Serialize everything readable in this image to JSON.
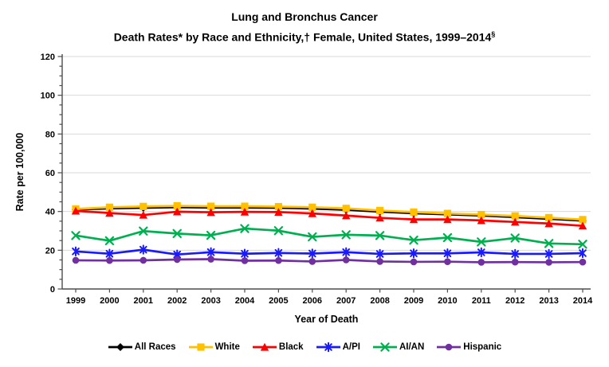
{
  "title": {
    "line1": "Lung and Bronchus Cancer",
    "line2_main": "Death Rates* by Race and Ethnicity,† Female, United States, 1999–2014",
    "line2_sup": "§"
  },
  "chart_data": {
    "type": "line",
    "title": "Lung and Bronchus Cancer Death Rates* by Race and Ethnicity,† Female, United States, 1999–2014§",
    "x": [
      1999,
      2000,
      2001,
      2002,
      2003,
      2004,
      2005,
      2006,
      2007,
      2008,
      2009,
      2010,
      2011,
      2012,
      2013,
      2014
    ],
    "xlabel": "Year of Death",
    "ylabel": "Rate per 100,000",
    "ylim": [
      0,
      120
    ],
    "yticks": [
      0,
      20,
      40,
      60,
      80,
      100,
      120
    ],
    "yminor_step": 5,
    "grid": "horizontal-major-gridlines",
    "legend_position": "bottom-center",
    "series": [
      {
        "name": "All Races",
        "color": "#000000",
        "marker": "diamond",
        "values": [
          41.0,
          41.6,
          41.9,
          42.2,
          42.0,
          42.0,
          41.9,
          41.5,
          40.9,
          39.9,
          39.1,
          38.5,
          37.9,
          37.1,
          36.2,
          35.3
        ]
      },
      {
        "name": "White",
        "color": "#FFC000",
        "marker": "square",
        "values": [
          41.3,
          42.2,
          42.6,
          42.9,
          42.7,
          42.7,
          42.5,
          42.2,
          41.6,
          40.5,
          39.7,
          39.0,
          38.4,
          37.7,
          36.8,
          35.8
        ]
      },
      {
        "name": "Black",
        "color": "#FF0000",
        "marker": "triangle",
        "values": [
          40.3,
          39.2,
          38.2,
          39.9,
          39.6,
          39.8,
          39.7,
          39.0,
          37.9,
          36.7,
          35.9,
          35.9,
          35.4,
          34.6,
          33.8,
          32.6
        ]
      },
      {
        "name": "A/PI",
        "color": "#1A1AFF",
        "marker": "asterisk",
        "values": [
          19.4,
          18.2,
          20.3,
          17.8,
          19.0,
          18.2,
          18.6,
          18.3,
          19.0,
          18.1,
          18.4,
          18.4,
          18.9,
          18.1,
          18.1,
          18.5
        ]
      },
      {
        "name": "AI/AN",
        "color": "#00B050",
        "marker": "x",
        "values": [
          27.6,
          24.9,
          29.9,
          28.6,
          27.7,
          31.2,
          30.1,
          26.9,
          28.0,
          27.6,
          25.2,
          26.5,
          24.3,
          26.3,
          23.5,
          23.1
        ]
      },
      {
        "name": "Hispanic",
        "color": "#7030A0",
        "marker": "circle",
        "values": [
          14.8,
          14.7,
          14.8,
          15.2,
          15.4,
          14.6,
          14.7,
          14.2,
          15.0,
          14.2,
          14.0,
          14.1,
          13.8,
          13.9,
          13.8,
          13.9
        ]
      }
    ]
  },
  "colors": {
    "gridline": "#D9D9D9",
    "axis": "#4D4D4D",
    "text": "#000000",
    "background": "#FFFFFF"
  }
}
